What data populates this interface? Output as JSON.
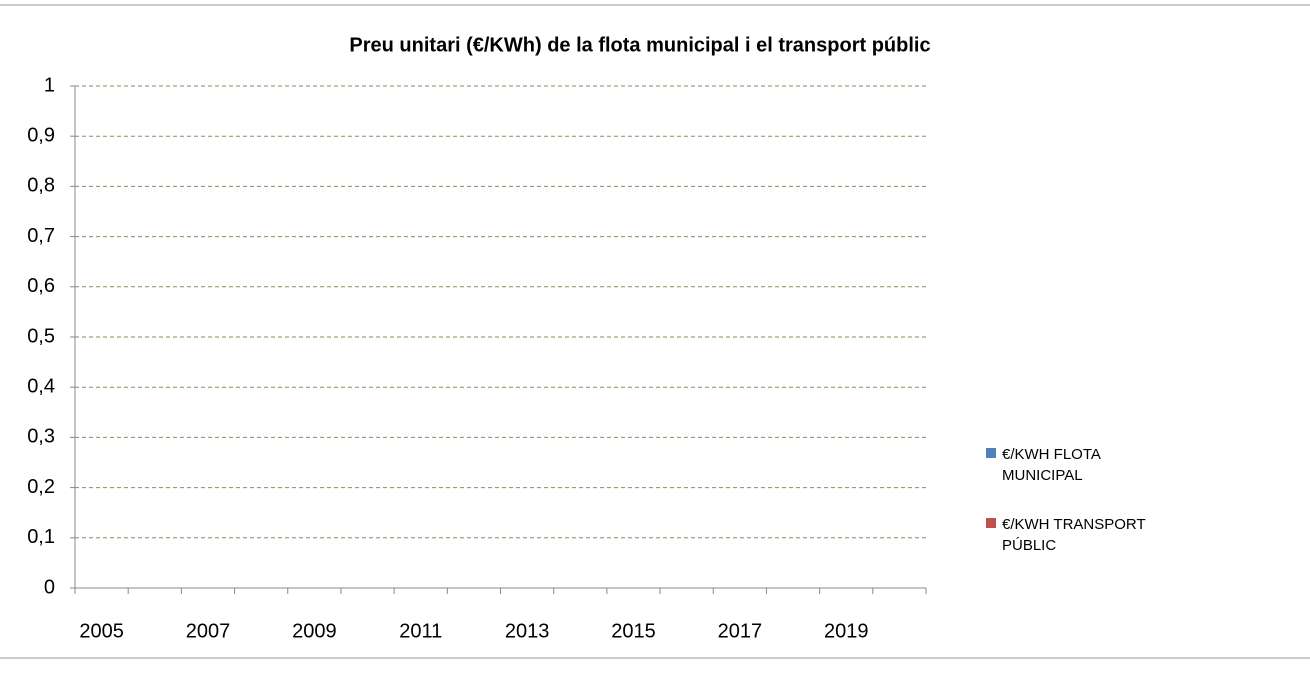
{
  "chart_data": {
    "type": "bar",
    "title": "Preu unitari (€/KWh) de la flota municipal i el transport públic",
    "categories": [
      "2005",
      null,
      "2007",
      null,
      "2009",
      null,
      "2011",
      null,
      "2013",
      null,
      "2015",
      null,
      "2017",
      null,
      "2019",
      null
    ],
    "series": [
      {
        "name": "€/KWH FLOTA MUNICIPAL",
        "color": "#4f81bd",
        "values": [
          null,
          null,
          null,
          null,
          null,
          null,
          null,
          null,
          null,
          null,
          null,
          null,
          null,
          null,
          null,
          null
        ]
      },
      {
        "name": "€/KWH TRANSPORT PÚBLIC",
        "color": "#c0504d",
        "values": [
          null,
          null,
          null,
          null,
          null,
          null,
          null,
          null,
          null,
          null,
          null,
          null,
          null,
          null,
          null,
          null
        ]
      }
    ],
    "ylim": [
      0,
      1
    ],
    "yticks": [
      0,
      {
        "value": 0.1,
        "label": "0,1"
      },
      {
        "value": 0.2,
        "label": "0,2"
      },
      {
        "value": 0.3,
        "label": "0,3"
      },
      {
        "value": 0.4,
        "label": "0,4"
      },
      {
        "value": 0.5,
        "label": "0,5"
      },
      {
        "value": 0.6,
        "label": "0,6"
      },
      {
        "value": 0.7,
        "label": "0,7"
      },
      {
        "value": 0.8,
        "label": "0,8"
      },
      {
        "value": 0.9,
        "label": "0,9"
      },
      1
    ],
    "grid": true,
    "legend": "right"
  }
}
